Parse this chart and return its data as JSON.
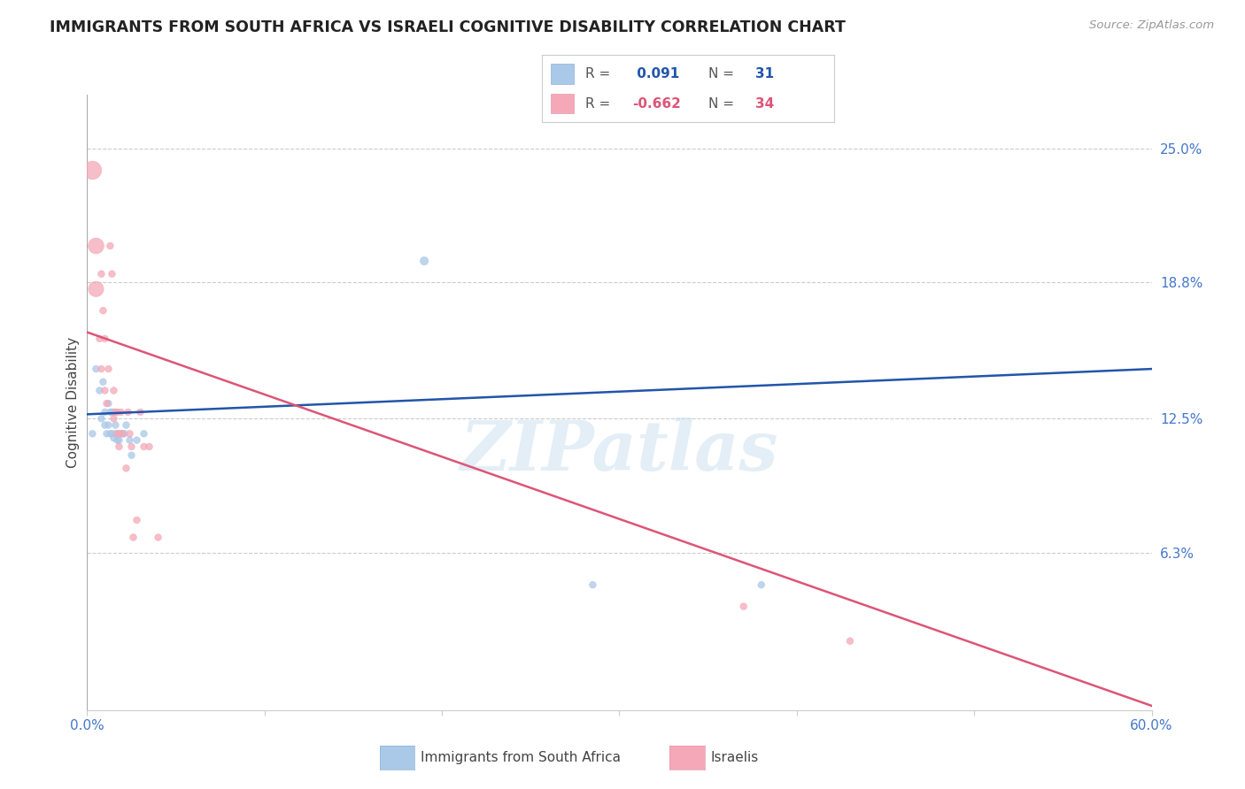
{
  "title": "IMMIGRANTS FROM SOUTH AFRICA VS ISRAELI COGNITIVE DISABILITY CORRELATION CHART",
  "source": "Source: ZipAtlas.com",
  "ylabel": "Cognitive Disability",
  "ytick_labels": [
    "6.3%",
    "12.5%",
    "18.8%",
    "25.0%"
  ],
  "ytick_values": [
    0.063,
    0.125,
    0.188,
    0.25
  ],
  "xlim": [
    0.0,
    0.6
  ],
  "ylim": [
    -0.01,
    0.275
  ],
  "legend_blue_r": " 0.091",
  "legend_blue_n": "31",
  "legend_pink_r": "-0.662",
  "legend_pink_n": "34",
  "legend_label_blue": "Immigrants from South Africa",
  "legend_label_pink": "Israelis",
  "blue_color": "#aac8e8",
  "pink_color": "#f4a8b8",
  "blue_line_color": "#2255aa",
  "pink_line_color": "#dd5577",
  "watermark": "ZIPatlas",
  "blue_line_x0": 0.0,
  "blue_line_y0": 0.127,
  "blue_line_x1": 0.6,
  "blue_line_y1": 0.148,
  "pink_line_x0": 0.0,
  "pink_line_y0": 0.165,
  "pink_line_x1": 0.6,
  "pink_line_y1": -0.008,
  "blue_points_x": [
    0.003,
    0.005,
    0.007,
    0.008,
    0.009,
    0.01,
    0.01,
    0.011,
    0.012,
    0.012,
    0.013,
    0.013,
    0.014,
    0.014,
    0.015,
    0.015,
    0.016,
    0.016,
    0.017,
    0.018,
    0.019,
    0.02,
    0.021,
    0.022,
    0.024,
    0.025,
    0.028,
    0.032,
    0.19,
    0.285,
    0.38
  ],
  "blue_points_y": [
    0.118,
    0.148,
    0.138,
    0.125,
    0.142,
    0.128,
    0.122,
    0.118,
    0.132,
    0.122,
    0.128,
    0.118,
    0.128,
    0.118,
    0.128,
    0.116,
    0.122,
    0.118,
    0.115,
    0.115,
    0.118,
    0.118,
    0.118,
    0.122,
    0.115,
    0.108,
    0.115,
    0.118,
    0.198,
    0.048,
    0.048
  ],
  "blue_points_size": [
    30,
    30,
    30,
    30,
    30,
    30,
    30,
    30,
    30,
    30,
    30,
    30,
    30,
    30,
    30,
    30,
    30,
    30,
    30,
    30,
    30,
    30,
    30,
    30,
    30,
    30,
    30,
    30,
    45,
    30,
    30
  ],
  "pink_points_x": [
    0.003,
    0.005,
    0.005,
    0.007,
    0.008,
    0.008,
    0.009,
    0.01,
    0.01,
    0.011,
    0.012,
    0.013,
    0.014,
    0.015,
    0.015,
    0.016,
    0.017,
    0.017,
    0.018,
    0.018,
    0.019,
    0.02,
    0.022,
    0.023,
    0.024,
    0.025,
    0.026,
    0.028,
    0.03,
    0.032,
    0.035,
    0.04,
    0.37,
    0.43
  ],
  "pink_points_y": [
    0.24,
    0.205,
    0.185,
    0.162,
    0.192,
    0.148,
    0.175,
    0.162,
    0.138,
    0.132,
    0.148,
    0.205,
    0.192,
    0.138,
    0.125,
    0.128,
    0.128,
    0.118,
    0.118,
    0.112,
    0.128,
    0.118,
    0.102,
    0.128,
    0.118,
    0.112,
    0.07,
    0.078,
    0.128,
    0.112,
    0.112,
    0.07,
    0.038,
    0.022
  ],
  "pink_points_size": [
    220,
    165,
    155,
    30,
    30,
    30,
    30,
    30,
    30,
    30,
    30,
    30,
    30,
    30,
    30,
    30,
    30,
    30,
    30,
    30,
    30,
    30,
    30,
    30,
    30,
    30,
    30,
    30,
    30,
    30,
    30,
    30,
    30,
    30
  ]
}
